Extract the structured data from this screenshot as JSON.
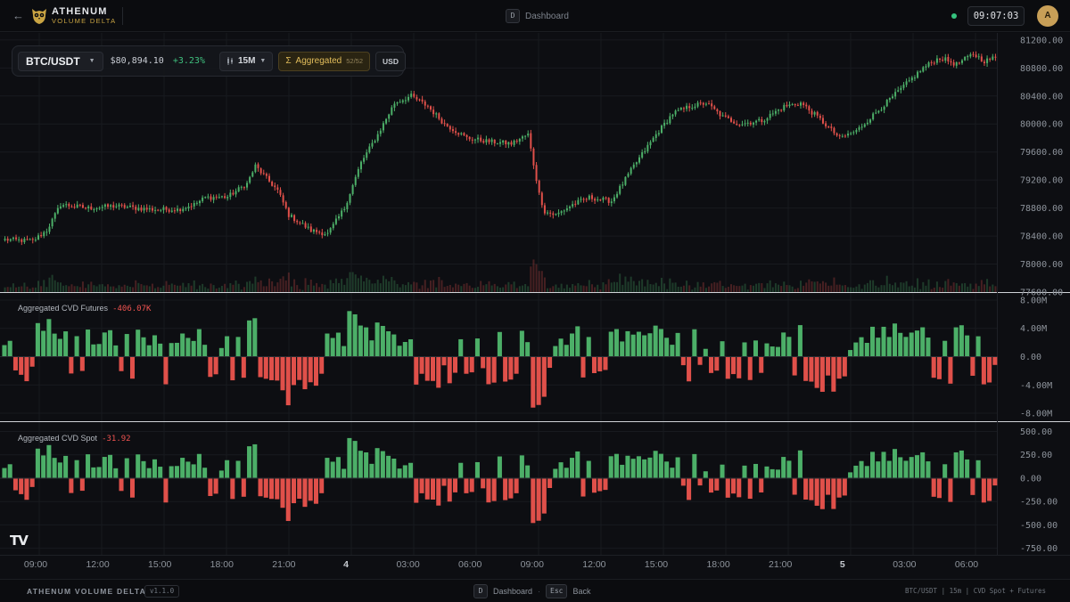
{
  "app": {
    "brand_name": "ATHENUM",
    "brand_sub": "VOLUME DELTA",
    "nav_key": "D",
    "nav_label": "Dashboard",
    "clock": "09:07:03",
    "avatar_initial": "A"
  },
  "toolbar": {
    "symbol": "BTC/USDT",
    "price": "$80,894.10",
    "change": "+3.23%",
    "interval": "15M",
    "aggregated_label": "Aggregated",
    "aggregated_count": "52/52",
    "currency": "USD"
  },
  "panes": {
    "futures_label": "Aggregated CVD Futures",
    "futures_value": "-406.07K",
    "spot_label": "Aggregated CVD Spot",
    "spot_value": "-31.92"
  },
  "footer": {
    "title": "ATHENUM VOLUME DELTA",
    "version": "v1.1.0",
    "dashboard_key": "D",
    "dashboard_label": "Dashboard",
    "back_key": "Esc",
    "back_label": "Back",
    "info": "BTC/USDT | 15m | CVD Spot + Futures"
  },
  "colors": {
    "up": "#4caf68",
    "down": "#e0504a",
    "accent": "#c9a443"
  },
  "chart_data": [
    {
      "type": "candlestick",
      "title": "BTC/USDT 15M",
      "x_ticks": [
        "09:00",
        "12:00",
        "15:00",
        "18:00",
        "21:00",
        "4",
        "03:00",
        "06:00",
        "09:00",
        "12:00",
        "15:00",
        "18:00",
        "21:00",
        "5",
        "03:00",
        "06:00"
      ],
      "y_ticks": [
        "81200.00",
        "80800.00",
        "80400.00",
        "80000.00",
        "79600.00",
        "79200.00",
        "78800.00",
        "78400.00",
        "78000.00",
        "77600.00"
      ],
      "ylim": [
        77600,
        81300
      ],
      "anchor_closes": [
        [
          0,
          78350
        ],
        [
          10,
          78330
        ],
        [
          15,
          78480
        ],
        [
          20,
          78850
        ],
        [
          30,
          78800
        ],
        [
          40,
          78830
        ],
        [
          52,
          78780
        ],
        [
          62,
          78780
        ],
        [
          68,
          78850
        ],
        [
          72,
          78950
        ],
        [
          80,
          78960
        ],
        [
          87,
          79150
        ],
        [
          90,
          79400
        ],
        [
          98,
          79050
        ],
        [
          102,
          78700
        ],
        [
          110,
          78480
        ],
        [
          116,
          78430
        ],
        [
          122,
          78800
        ],
        [
          128,
          79450
        ],
        [
          134,
          79850
        ],
        [
          140,
          80300
        ],
        [
          146,
          80400
        ],
        [
          152,
          80250
        ],
        [
          158,
          80000
        ],
        [
          166,
          79800
        ],
        [
          174,
          79750
        ],
        [
          182,
          79720
        ],
        [
          188,
          79850
        ],
        [
          192,
          79000
        ],
        [
          194,
          78750
        ],
        [
          198,
          78700
        ],
        [
          204,
          78850
        ],
        [
          210,
          78950
        ],
        [
          218,
          78900
        ],
        [
          226,
          79400
        ],
        [
          234,
          79850
        ],
        [
          240,
          80150
        ],
        [
          246,
          80250
        ],
        [
          252,
          80300
        ],
        [
          258,
          80100
        ],
        [
          264,
          80000
        ],
        [
          272,
          80050
        ],
        [
          280,
          80250
        ],
        [
          286,
          80300
        ],
        [
          292,
          80100
        ],
        [
          300,
          79800
        ],
        [
          306,
          79900
        ],
        [
          314,
          80200
        ],
        [
          322,
          80500
        ],
        [
          330,
          80800
        ],
        [
          336,
          80950
        ],
        [
          342,
          80850
        ],
        [
          348,
          81000
        ],
        [
          352,
          80900
        ],
        [
          356,
          80950
        ]
      ]
    },
    {
      "type": "bar",
      "title": "Aggregated CVD Futures",
      "y_ticks": [
        "8.00M",
        "4.00M",
        "0.00",
        "-4.00M",
        "-8.00M"
      ],
      "ylim": [
        -9000000,
        9000000
      ]
    },
    {
      "type": "bar",
      "title": "Aggregated CVD Spot",
      "y_ticks": [
        "500.00",
        "250.00",
        "0.00",
        "-250.00",
        "-500.00",
        "-750.00"
      ],
      "ylim": [
        -820,
        600
      ]
    }
  ]
}
